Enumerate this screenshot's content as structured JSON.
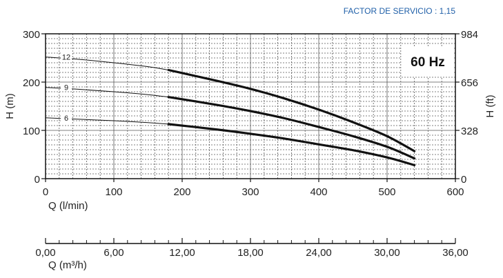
{
  "header": {
    "factor_text": "FACTOR DE SERVICIO : 1,15",
    "factor_color": "#1f5fa8"
  },
  "chart_data": [
    {
      "type": "line",
      "frequency_label": "60 Hz",
      "xlabel": "Q (l/min)",
      "ylabel_left": "H (m)",
      "ylabel_right": "H (ft)",
      "xlim": [
        0,
        600
      ],
      "ylim": [
        0,
        300
      ],
      "x_ticks": [
        "0",
        "100",
        "200",
        "300",
        "400",
        "500",
        "600"
      ],
      "y_ticks_left": [
        "0",
        "100",
        "200",
        "300"
      ],
      "y_ticks_right": [
        {
          "value": 0,
          "label": "0"
        },
        {
          "value": 100,
          "label": "328"
        },
        {
          "value": 200,
          "label": "656"
        },
        {
          "value": 300,
          "label": "984"
        }
      ],
      "grid": true,
      "series": [
        {
          "name": "12",
          "x": [
            0,
            50,
            100,
            150,
            180,
            250,
            300,
            350,
            400,
            450,
            500,
            540
          ],
          "y": [
            252,
            247,
            240,
            232,
            225,
            203,
            186,
            166,
            143,
            117,
            88,
            57
          ]
        },
        {
          "name": "9",
          "x": [
            0,
            50,
            100,
            150,
            180,
            250,
            300,
            350,
            400,
            450,
            500,
            540
          ],
          "y": [
            189,
            185,
            180,
            174,
            169,
            153,
            140,
            125,
            107,
            88,
            66,
            42
          ]
        },
        {
          "name": "6",
          "x": [
            0,
            50,
            100,
            150,
            180,
            250,
            300,
            350,
            400,
            450,
            500,
            540
          ],
          "y": [
            126,
            123,
            120,
            116,
            113,
            102,
            93,
            83,
            71,
            59,
            44,
            28
          ]
        }
      ],
      "operating_range_start": 180
    },
    {
      "type": "axis",
      "xlabel": "Q (m³/h)",
      "xlim": [
        0,
        36
      ],
      "x_ticks": [
        "0,00",
        "6,00",
        "12,00",
        "18,00",
        "24,00",
        "30,00",
        "36,00"
      ]
    }
  ]
}
